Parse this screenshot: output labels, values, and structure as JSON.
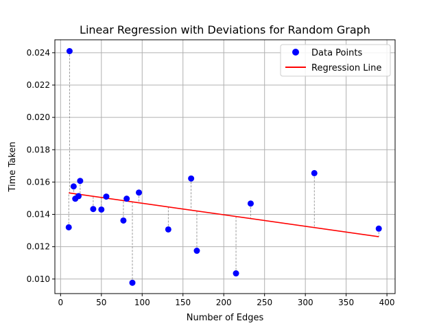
{
  "chart_data": {
    "type": "scatter",
    "title": "Linear Regression with Deviations for Random Graph",
    "xlabel": "Number of Edges",
    "ylabel": "Time Taken",
    "xlim": [
      -7,
      410
    ],
    "ylim": [
      0.0091,
      0.0248
    ],
    "xticks": [
      0,
      50,
      100,
      150,
      200,
      250,
      300,
      350,
      400
    ],
    "yticks": [
      0.01,
      0.012,
      0.014,
      0.016,
      0.018,
      0.02,
      0.022,
      0.024
    ],
    "xtick_labels": [
      "0",
      "50",
      "100",
      "150",
      "200",
      "250",
      "300",
      "350",
      "400"
    ],
    "ytick_labels": [
      "0.010",
      "0.012",
      "0.014",
      "0.016",
      "0.018",
      "0.020",
      "0.022",
      "0.024"
    ],
    "grid": true,
    "legend_position": "top-right",
    "series": [
      {
        "name": "Data Points",
        "kind": "scatter",
        "color": "#0000ff",
        "x": [
          10,
          11,
          16,
          18,
          22,
          24,
          40,
          50,
          56,
          77,
          81,
          88,
          96,
          132,
          160,
          167,
          215,
          233,
          311,
          390
        ],
        "y": [
          0.0132,
          0.0241,
          0.01573,
          0.01497,
          0.01513,
          0.01607,
          0.01433,
          0.0143,
          0.0151,
          0.01362,
          0.01497,
          0.00977,
          0.01535,
          0.01307,
          0.01622,
          0.01175,
          0.01035,
          0.01467,
          0.01655,
          0.01312
        ]
      },
      {
        "name": "Regression Line",
        "kind": "line",
        "color": "#ff0000",
        "x": [
          10,
          390
        ],
        "y": [
          0.01533,
          0.01262
        ]
      }
    ],
    "deviations": {
      "style": "dashed",
      "color": "#808080"
    }
  }
}
